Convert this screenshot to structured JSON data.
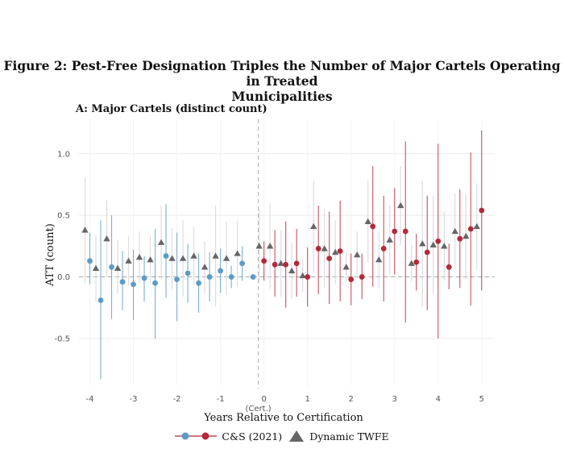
{
  "figure": {
    "title_line1": "Figure 2: Pest-Free Designation Triples the Number of Major Cartels Operating in Treated",
    "title_line2": "Municipalities",
    "panel_title": "A: Major Cartels (distinct count)"
  },
  "chart_data": {
    "type": "scatter",
    "title": "A: Major Cartels (distinct count)",
    "xlabel": "Years Relative to Certification",
    "ylabel": "ATT (count)",
    "xlim": [
      -4.25,
      5.3
    ],
    "ylim": [
      -0.88,
      1.28
    ],
    "x_ticks": [
      {
        "value": -4,
        "label": "-4"
      },
      {
        "value": -3,
        "label": "-3"
      },
      {
        "value": -2,
        "label": "-2"
      },
      {
        "value": -1,
        "label": "-1"
      },
      {
        "value": 0,
        "label": "0"
      },
      {
        "value": 1,
        "label": "1"
      },
      {
        "value": 2,
        "label": "2"
      },
      {
        "value": 3,
        "label": "3"
      },
      {
        "value": 4,
        "label": "4"
      },
      {
        "value": 5,
        "label": "5"
      }
    ],
    "y_ticks": [
      {
        "value": -0.5,
        "label": "-0.5"
      },
      {
        "value": 0.0,
        "label": "0.0"
      },
      {
        "value": 0.5,
        "label": "0.5"
      },
      {
        "value": 1.0,
        "label": "1.0"
      }
    ],
    "cert_annotation": "(Cert.)",
    "cert_line_x": -0.13,
    "grid": true,
    "legend_position": "bottom",
    "colors": {
      "pre": "#5b9bc9",
      "post": "#b5283a",
      "twfe": "#666666",
      "twfe_ci": "#dddddd"
    },
    "series": [
      {
        "name": "C&S (2021)",
        "points": [
          {
            "x": -4.0,
            "y": 0.13,
            "lo": -0.06,
            "hi": 0.36
          },
          {
            "x": -3.75,
            "y": -0.19,
            "lo": -0.83,
            "hi": 0.46
          },
          {
            "x": -3.5,
            "y": 0.08,
            "lo": -0.34,
            "hi": 0.5
          },
          {
            "x": -3.25,
            "y": -0.04,
            "lo": -0.27,
            "hi": 0.21
          },
          {
            "x": -3.0,
            "y": -0.06,
            "lo": -0.35,
            "hi": 0.22
          },
          {
            "x": -2.75,
            "y": -0.01,
            "lo": -0.2,
            "hi": 0.17
          },
          {
            "x": -2.5,
            "y": -0.05,
            "lo": -0.5,
            "hi": 0.39
          },
          {
            "x": -2.25,
            "y": 0.17,
            "lo": -0.17,
            "hi": 0.59
          },
          {
            "x": -2.0,
            "y": -0.02,
            "lo": -0.36,
            "hi": 0.36
          },
          {
            "x": -1.75,
            "y": 0.03,
            "lo": -0.21,
            "hi": 0.27
          },
          {
            "x": -1.5,
            "y": -0.05,
            "lo": -0.29,
            "hi": 0.19
          },
          {
            "x": -1.25,
            "y": 0.0,
            "lo": -0.2,
            "hi": 0.2
          },
          {
            "x": -1.0,
            "y": 0.05,
            "lo": -0.13,
            "hi": 0.23
          },
          {
            "x": -0.75,
            "y": 0.0,
            "lo": -0.09,
            "hi": 0.09
          },
          {
            "x": -0.5,
            "y": 0.11,
            "lo": -0.03,
            "hi": 0.25
          },
          {
            "x": -0.25,
            "y": 0.0,
            "lo": 0.0,
            "hi": 0.0
          },
          {
            "x": 0.0,
            "y": 0.13,
            "lo": -0.03,
            "hi": 0.29
          },
          {
            "x": 0.25,
            "y": 0.1,
            "lo": -0.16,
            "hi": 0.38
          },
          {
            "x": 0.5,
            "y": 0.1,
            "lo": -0.25,
            "hi": 0.45
          },
          {
            "x": 0.75,
            "y": 0.11,
            "lo": -0.16,
            "hi": 0.39
          },
          {
            "x": 1.0,
            "y": 0.0,
            "lo": -0.24,
            "hi": 0.24
          },
          {
            "x": 1.25,
            "y": 0.23,
            "lo": -0.14,
            "hi": 0.58
          },
          {
            "x": 1.5,
            "y": 0.15,
            "lo": -0.22,
            "hi": 0.53
          },
          {
            "x": 1.75,
            "y": 0.21,
            "lo": -0.2,
            "hi": 0.62
          },
          {
            "x": 2.0,
            "y": -0.02,
            "lo": -0.23,
            "hi": 0.19
          },
          {
            "x": 2.25,
            "y": 0.0,
            "lo": -0.18,
            "hi": 0.19
          },
          {
            "x": 2.5,
            "y": 0.41,
            "lo": -0.08,
            "hi": 0.9
          },
          {
            "x": 2.75,
            "y": 0.23,
            "lo": -0.2,
            "hi": 0.66
          },
          {
            "x": 3.0,
            "y": 0.37,
            "lo": 0.02,
            "hi": 0.72
          },
          {
            "x": 3.25,
            "y": 0.37,
            "lo": -0.37,
            "hi": 1.1
          },
          {
            "x": 3.5,
            "y": 0.12,
            "lo": -0.11,
            "hi": 0.35
          },
          {
            "x": 3.75,
            "y": 0.2,
            "lo": -0.27,
            "hi": 0.66
          },
          {
            "x": 4.0,
            "y": 0.29,
            "lo": -0.5,
            "hi": 1.08
          },
          {
            "x": 4.25,
            "y": 0.08,
            "lo": -0.1,
            "hi": 0.27
          },
          {
            "x": 4.5,
            "y": 0.31,
            "lo": -0.09,
            "hi": 0.71
          },
          {
            "x": 4.75,
            "y": 0.39,
            "lo": -0.23,
            "hi": 1.01
          },
          {
            "x": 5.0,
            "y": 0.54,
            "lo": -0.11,
            "hi": 1.19
          }
        ]
      },
      {
        "name": "Dynamic TWFE",
        "points": [
          {
            "x": -4.0,
            "y": 0.38,
            "lo": -0.05,
            "hi": 0.81
          },
          {
            "x": -3.75,
            "y": 0.07,
            "lo": -0.2,
            "hi": 0.34
          },
          {
            "x": -3.5,
            "y": 0.31,
            "lo": 0.0,
            "hi": 0.62
          },
          {
            "x": -3.25,
            "y": 0.07,
            "lo": -0.14,
            "hi": 0.3
          },
          {
            "x": -3.0,
            "y": 0.13,
            "lo": -0.07,
            "hi": 0.33
          },
          {
            "x": -2.75,
            "y": 0.16,
            "lo": -0.05,
            "hi": 0.37
          },
          {
            "x": -2.5,
            "y": 0.14,
            "lo": -0.05,
            "hi": 0.33
          },
          {
            "x": -2.25,
            "y": 0.28,
            "lo": -0.02,
            "hi": 0.58
          },
          {
            "x": -2.0,
            "y": 0.15,
            "lo": -0.1,
            "hi": 0.4
          },
          {
            "x": -1.75,
            "y": 0.15,
            "lo": -0.16,
            "hi": 0.46
          },
          {
            "x": -1.5,
            "y": 0.17,
            "lo": -0.07,
            "hi": 0.41
          },
          {
            "x": -1.25,
            "y": 0.08,
            "lo": -0.13,
            "hi": 0.29
          },
          {
            "x": -1.0,
            "y": 0.17,
            "lo": -0.24,
            "hi": 0.58
          },
          {
            "x": -0.75,
            "y": 0.15,
            "lo": -0.15,
            "hi": 0.45
          },
          {
            "x": -0.5,
            "y": 0.19,
            "lo": -0.08,
            "hi": 0.46
          },
          {
            "x": 0.0,
            "y": 0.25,
            "lo": -0.05,
            "hi": 0.55
          },
          {
            "x": 0.25,
            "y": 0.25,
            "lo": -0.1,
            "hi": 0.6
          },
          {
            "x": 0.5,
            "y": 0.11,
            "lo": -0.16,
            "hi": 0.38
          },
          {
            "x": 0.75,
            "y": 0.05,
            "lo": -0.18,
            "hi": 0.28
          },
          {
            "x": 1.0,
            "y": 0.01,
            "lo": -0.12,
            "hi": 0.14
          },
          {
            "x": 1.25,
            "y": 0.41,
            "lo": 0.04,
            "hi": 0.78
          },
          {
            "x": 1.5,
            "y": 0.23,
            "lo": -0.09,
            "hi": 0.55
          },
          {
            "x": 1.75,
            "y": 0.2,
            "lo": -0.06,
            "hi": 0.46
          },
          {
            "x": 2.0,
            "y": 0.08,
            "lo": -0.04,
            "hi": 0.2
          },
          {
            "x": 2.25,
            "y": 0.18,
            "lo": -0.01,
            "hi": 0.37
          },
          {
            "x": 2.5,
            "y": 0.45,
            "lo": 0.12,
            "hi": 0.78
          },
          {
            "x": 2.75,
            "y": 0.14,
            "lo": -0.09,
            "hi": 0.37
          },
          {
            "x": 3.0,
            "y": 0.3,
            "lo": 0.02,
            "hi": 0.58
          },
          {
            "x": 3.25,
            "y": 0.58,
            "lo": 0.26,
            "hi": 0.9
          },
          {
            "x": 3.5,
            "y": 0.11,
            "lo": -0.04,
            "hi": 0.26
          },
          {
            "x": 3.75,
            "y": 0.27,
            "lo": -0.24,
            "hi": 0.78
          },
          {
            "x": 4.0,
            "y": 0.26,
            "lo": -0.14,
            "hi": 0.66
          },
          {
            "x": 4.25,
            "y": 0.25,
            "lo": -0.03,
            "hi": 0.53
          },
          {
            "x": 4.5,
            "y": 0.37,
            "lo": 0.06,
            "hi": 0.68
          },
          {
            "x": 4.75,
            "y": 0.33,
            "lo": -0.02,
            "hi": 0.68
          },
          {
            "x": 5.0,
            "y": 0.41,
            "lo": 0.06,
            "hi": 0.76
          }
        ]
      }
    ]
  }
}
